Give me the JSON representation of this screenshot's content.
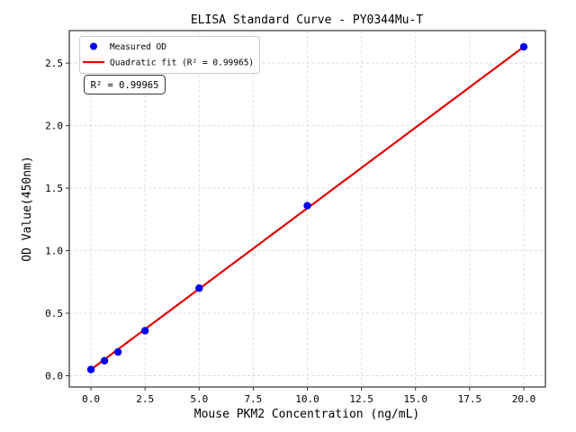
{
  "chart_data": {
    "type": "scatter",
    "title": "ELISA Standard Curve - PY0344Mu-T",
    "xlabel": "Mouse PKM2 Concentration (ng/mL)",
    "ylabel": "OD Value(450nm)",
    "xlim": [
      -1.0,
      21.0
    ],
    "ylim": [
      -0.09,
      2.76
    ],
    "x_tick_values": [
      0.0,
      2.5,
      5.0,
      7.5,
      10.0,
      12.5,
      15.0,
      17.5,
      20.0
    ],
    "x_tick_labels": [
      "0.0",
      "2.5",
      "5.0",
      "7.5",
      "10.0",
      "12.5",
      "15.0",
      "17.5",
      "20.0"
    ],
    "y_tick_values": [
      0.0,
      0.5,
      1.0,
      1.5,
      2.0,
      2.5
    ],
    "y_tick_labels": [
      "0.0",
      "0.5",
      "1.0",
      "1.5",
      "2.0",
      "2.5"
    ],
    "grid": true,
    "legend_position": "upper left",
    "series": [
      {
        "name": "Measured OD",
        "type": "scatter",
        "color": "#0000f0",
        "x": [
          0,
          0.625,
          1.25,
          2.5,
          5,
          10,
          20
        ],
        "y": [
          0.05,
          0.12,
          0.19,
          0.36,
          0.7,
          1.36,
          2.63
        ]
      },
      {
        "name": "Quadratic fit (R² = 0.99965)",
        "type": "line",
        "color": "#e60000",
        "fit_coefficients": {
          "a": 0.05,
          "b": 0.129,
          "c": 0.0
        },
        "x_range": [
          0,
          20
        ]
      }
    ],
    "annotation": {
      "text": "R² = 0.99965"
    }
  },
  "colors": {
    "background": "#ffffff",
    "grid": "#d9d9d9",
    "spine": "#333333",
    "text": "#000000",
    "legend_border": "#cccccc",
    "annotation_border": "#333333"
  }
}
